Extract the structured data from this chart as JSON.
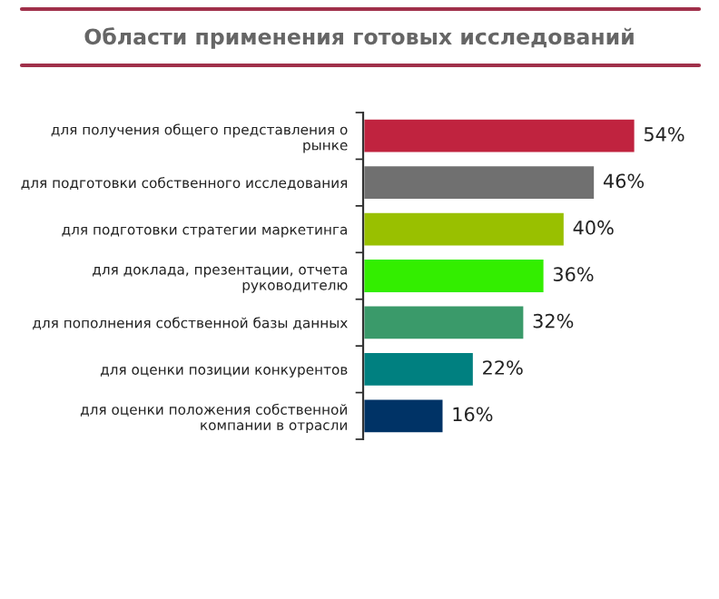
{
  "chart_data": {
    "type": "bar",
    "orientation": "horizontal",
    "title": "Области применения готовых исследований",
    "categories": [
      "для получения общего представления о\nрынке",
      "для подготовки собственного исследования",
      "для подготовки стратегии маркетинга",
      "для доклада, презентации, отчета\nруководителю",
      "для пополнения собственной базы данных",
      "для оценки позиции конкурентов",
      "для оценки положения собственной\nкомпании в отрасли"
    ],
    "values": [
      54,
      46,
      40,
      36,
      32,
      22,
      16
    ],
    "value_labels": [
      "54%",
      "46%",
      "40%",
      "36%",
      "32%",
      "22%",
      "16%"
    ],
    "colors": [
      "#c0233f",
      "#707070",
      "#99c000",
      "#33ee00",
      "#3a9a6a",
      "#008080",
      "#003366"
    ],
    "grid": false,
    "legend": false
  }
}
